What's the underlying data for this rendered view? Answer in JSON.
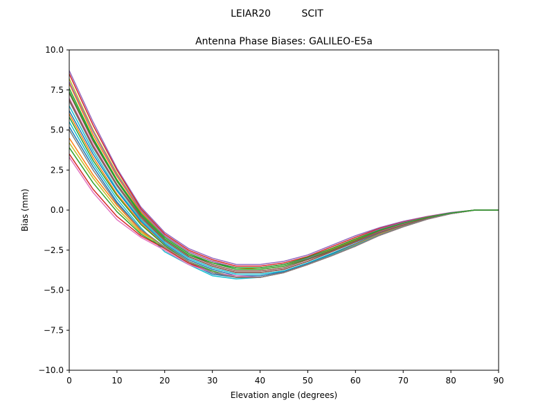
{
  "chart_data": {
    "type": "line",
    "suptitle": "LEIAR20          SCIT",
    "title": "Antenna Phase Biases: GALILEO-E5a",
    "xlabel": "Elevation angle (degrees)",
    "ylabel": "Bias (mm)",
    "xlim": [
      0,
      90
    ],
    "ylim": [
      -10,
      10
    ],
    "xticks": [
      0,
      10,
      20,
      30,
      40,
      50,
      60,
      70,
      80,
      90
    ],
    "xtick_labels": [
      "0",
      "10",
      "20",
      "30",
      "40",
      "50",
      "60",
      "70",
      "80",
      "90"
    ],
    "yticks": [
      -10,
      -7.5,
      -5,
      -2.5,
      0,
      2.5,
      5,
      7.5,
      10
    ],
    "ytick_labels": [
      "−10.0",
      "−7.5",
      "−5.0",
      "−2.5",
      "0.0",
      "2.5",
      "5.0",
      "7.5",
      "10.0"
    ],
    "grid": false,
    "legend": false,
    "x": [
      0,
      5,
      10,
      15,
      20,
      25,
      30,
      35,
      40,
      45,
      50,
      55,
      60,
      65,
      70,
      75,
      80,
      85,
      90
    ],
    "series": [
      {
        "color": "#9467bd",
        "values": [
          8.7,
          5.5,
          2.6,
          0.2,
          -1.4,
          -2.4,
          -3.0,
          -3.4,
          -3.4,
          -3.2,
          -2.8,
          -2.2,
          -1.6,
          -1.1,
          -0.7,
          -0.4,
          -0.15,
          0.0,
          0.0
        ]
      },
      {
        "color": "#d62728",
        "values": [
          8.5,
          5.3,
          2.5,
          0.1,
          -1.5,
          -2.5,
          -3.1,
          -3.5,
          -3.5,
          -3.3,
          -2.9,
          -2.3,
          -1.7,
          -1.15,
          -0.75,
          -0.42,
          -0.17,
          0.0,
          0.0
        ]
      },
      {
        "color": "#bcbd22",
        "values": [
          8.2,
          5.0,
          2.3,
          0.0,
          -1.6,
          -2.6,
          -3.2,
          -3.6,
          -3.6,
          -3.4,
          -3.0,
          -2.4,
          -1.8,
          -1.2,
          -0.8,
          -0.45,
          -0.18,
          0.0,
          0.0
        ]
      },
      {
        "color": "#ff7f0e",
        "values": [
          7.9,
          4.7,
          2.1,
          -0.1,
          -1.6,
          -2.6,
          -3.2,
          -3.6,
          -3.7,
          -3.5,
          -3.0,
          -2.45,
          -1.85,
          -1.25,
          -0.82,
          -0.46,
          -0.18,
          0.0,
          0.0
        ]
      },
      {
        "color": "#2ca02c",
        "values": [
          7.6,
          4.5,
          1.9,
          -0.2,
          -1.7,
          -2.7,
          -3.3,
          -3.7,
          -3.7,
          -3.5,
          -3.05,
          -2.5,
          -1.9,
          -1.3,
          -0.85,
          -0.47,
          -0.19,
          0.0,
          0.0
        ]
      },
      {
        "color": "#8c564b",
        "values": [
          7.3,
          4.3,
          1.8,
          -0.3,
          -1.8,
          -2.8,
          -3.4,
          -3.8,
          -3.8,
          -3.6,
          -3.1,
          -2.55,
          -1.95,
          -1.33,
          -0.87,
          -0.48,
          -0.19,
          0.0,
          0.0
        ]
      },
      {
        "color": "#e377c2",
        "values": [
          7.0,
          4.1,
          1.6,
          -0.4,
          -1.9,
          -2.9,
          -3.5,
          -3.9,
          -3.9,
          -3.7,
          -3.2,
          -2.6,
          -2.0,
          -1.38,
          -0.9,
          -0.5,
          -0.2,
          0.0,
          0.0
        ]
      },
      {
        "color": "#7f7f7f",
        "values": [
          6.8,
          3.9,
          1.5,
          -0.5,
          -1.9,
          -2.9,
          -3.5,
          -3.9,
          -3.9,
          -3.7,
          -3.2,
          -2.6,
          -2.0,
          -1.4,
          -0.92,
          -0.51,
          -0.2,
          0.0,
          0.0
        ]
      },
      {
        "color": "#17becf",
        "values": [
          6.5,
          3.7,
          1.3,
          -0.6,
          -2.0,
          -3.0,
          -3.6,
          -4.0,
          -4.0,
          -3.8,
          -3.3,
          -2.7,
          -2.1,
          -1.45,
          -0.95,
          -0.53,
          -0.21,
          0.0,
          0.0
        ]
      },
      {
        "color": "#1f77b4",
        "values": [
          6.2,
          3.5,
          1.2,
          -0.7,
          -2.1,
          -3.1,
          -3.7,
          -4.1,
          -4.1,
          -3.85,
          -3.35,
          -2.75,
          -2.1,
          -1.47,
          -0.97,
          -0.54,
          -0.21,
          0.0,
          0.0
        ]
      },
      {
        "color": "#ff7f0e",
        "values": [
          6.0,
          3.3,
          1.0,
          -0.8,
          -2.2,
          -3.2,
          -3.8,
          -4.2,
          -4.2,
          -3.9,
          -3.4,
          -2.8,
          -2.15,
          -1.5,
          -1.0,
          -0.55,
          -0.22,
          0.0,
          0.0
        ]
      },
      {
        "color": "#2ca02c",
        "values": [
          5.8,
          3.1,
          0.9,
          -0.9,
          -2.2,
          -3.2,
          -3.8,
          -4.2,
          -4.2,
          -3.9,
          -3.4,
          -2.8,
          -2.2,
          -1.55,
          -1.02,
          -0.56,
          -0.22,
          0.0,
          0.0
        ]
      },
      {
        "color": "#17becf",
        "values": [
          5.5,
          2.9,
          0.7,
          -1.1,
          -2.6,
          -3.4,
          -4.1,
          -4.3,
          -4.2,
          -3.9,
          -3.4,
          -2.8,
          -2.2,
          -1.55,
          -1.02,
          -0.56,
          -0.22,
          0.0,
          0.0
        ]
      },
      {
        "color": "#1f77b4",
        "values": [
          5.2,
          2.7,
          0.5,
          -1.2,
          -2.4,
          -3.3,
          -4.0,
          -4.2,
          -4.2,
          -3.9,
          -3.4,
          -2.85,
          -2.25,
          -1.58,
          -1.04,
          -0.57,
          -0.22,
          0.0,
          0.0
        ]
      },
      {
        "color": "#ff7f0e",
        "values": [
          4.5,
          2.2,
          0.3,
          -1.3,
          -2.3,
          -3.2,
          -3.9,
          -4.2,
          -4.2,
          -3.9,
          -3.4,
          -2.85,
          -2.25,
          -1.58,
          -1.04,
          -0.57,
          -0.22,
          0.0,
          0.0
        ]
      },
      {
        "color": "#bcbd22",
        "values": [
          4.2,
          2.0,
          0.1,
          -1.4,
          -2.3,
          -3.2,
          -3.9,
          -4.2,
          -4.2,
          -3.9,
          -3.4,
          -2.85,
          -2.25,
          -1.58,
          -1.04,
          -0.57,
          -0.22,
          0.0,
          0.0
        ]
      },
      {
        "color": "#2ca02c",
        "values": [
          3.9,
          1.7,
          -0.1,
          -1.5,
          -2.4,
          -3.3,
          -3.9,
          -4.2,
          -4.2,
          -3.9,
          -3.4,
          -2.85,
          -2.25,
          -1.58,
          -1.04,
          -0.57,
          -0.22,
          0.0,
          0.0
        ]
      },
      {
        "color": "#d62728",
        "values": [
          3.5,
          1.3,
          -0.4,
          -1.6,
          -2.4,
          -3.3,
          -3.9,
          -4.2,
          -4.2,
          -3.9,
          -3.4,
          -2.85,
          -2.25,
          -1.58,
          -1.04,
          -0.57,
          -0.22,
          0.0,
          0.0
        ]
      },
      {
        "color": "#e377c2",
        "values": [
          3.3,
          1.1,
          -0.6,
          -1.7,
          -2.5,
          -3.4,
          -3.9,
          -4.1,
          -4.2,
          -3.9,
          -3.4,
          -2.85,
          -2.25,
          -1.58,
          -1.04,
          -0.57,
          -0.22,
          0.0,
          0.0
        ]
      },
      {
        "color": "#9467bd",
        "values": [
          8.0,
          4.9,
          2.2,
          0.0,
          -1.6,
          -2.6,
          -3.2,
          -3.6,
          -3.6,
          -3.4,
          -3.0,
          -2.4,
          -1.8,
          -1.2,
          -0.78,
          -0.44,
          -0.17,
          0.0,
          0.0
        ]
      },
      {
        "color": "#8c564b",
        "values": [
          6.9,
          4.0,
          1.6,
          -0.4,
          -1.9,
          -2.9,
          -3.5,
          -3.9,
          -3.9,
          -3.7,
          -3.2,
          -2.6,
          -2.0,
          -1.4,
          -0.92,
          -0.5,
          -0.2,
          0.0,
          0.0
        ]
      },
      {
        "color": "#7f7f7f",
        "values": [
          5.0,
          2.5,
          0.4,
          -1.2,
          -2.3,
          -3.2,
          -3.9,
          -4.2,
          -4.2,
          -3.9,
          -3.4,
          -2.85,
          -2.25,
          -1.58,
          -1.04,
          -0.57,
          -0.22,
          0.0,
          0.0
        ]
      },
      {
        "color": "#2ca02c",
        "values": [
          7.4,
          4.4,
          1.8,
          -0.3,
          -1.8,
          -2.8,
          -3.3,
          -3.6,
          -3.6,
          -3.4,
          -2.95,
          -2.4,
          -1.8,
          -1.25,
          -0.82,
          -0.46,
          -0.18,
          0.0,
          0.0
        ]
      }
    ]
  }
}
